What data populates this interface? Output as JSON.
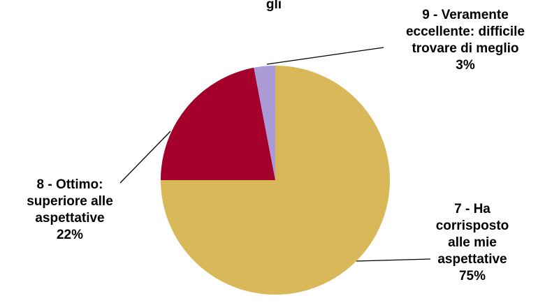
{
  "chart_data": {
    "type": "pie",
    "title_fragment": "gli",
    "slices": [
      {
        "name": "7 - Ha corrisposto alle mie aspettative",
        "lines": [
          "7 - Ha",
          "corrisposto",
          "alle mie",
          "aspettative"
        ],
        "percent_label": "75%",
        "value": 75,
        "color": "#D9B85A"
      },
      {
        "name": "8 - Ottimo: superiore alle aspettative",
        "lines": [
          "8 - Ottimo:",
          "superiore alle",
          "aspettative"
        ],
        "percent_label": "22%",
        "value": 22,
        "color": "#A3002B"
      },
      {
        "name": "9 - Veramente eccellente: difficile trovare di meglio",
        "lines": [
          "9 - Veramente",
          "eccellente: difficile",
          "trovare di meglio"
        ],
        "percent_label": "3%",
        "value": 3,
        "color": "#AA9BD6"
      }
    ]
  }
}
